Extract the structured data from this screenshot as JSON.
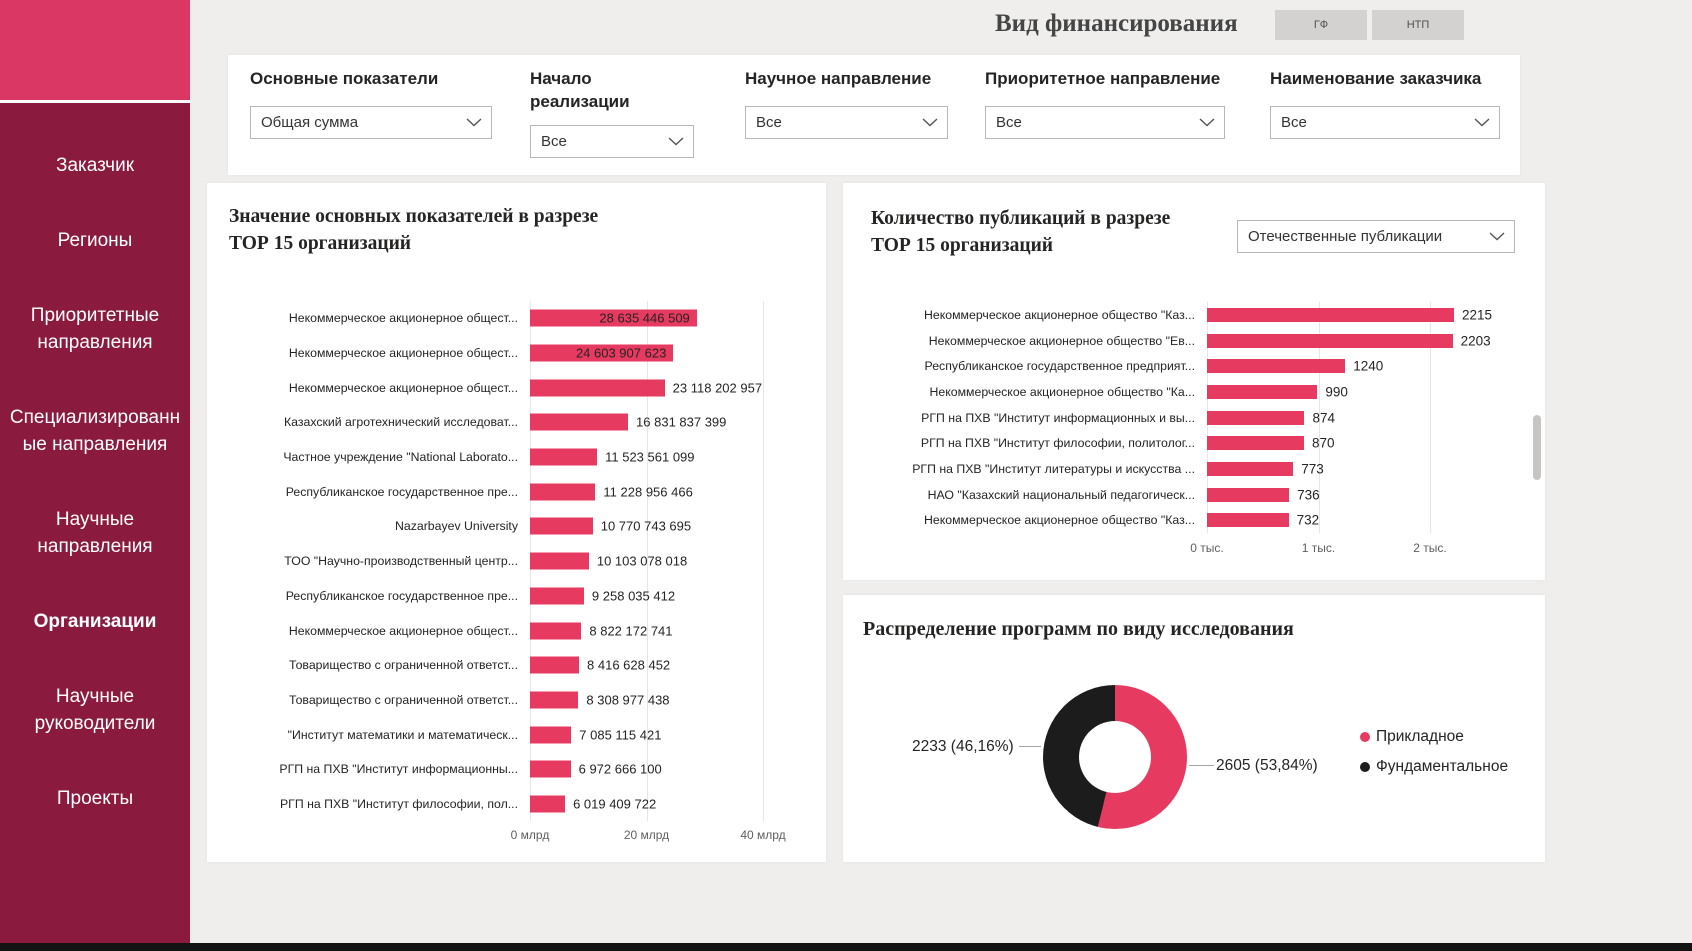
{
  "sidebar": {
    "items": [
      {
        "label": "Заказчик",
        "active": false
      },
      {
        "label": "Регионы",
        "active": false
      },
      {
        "label": "Приоритетные направления",
        "active": false
      },
      {
        "label": "Специализированные направления",
        "active": false
      },
      {
        "label": "Научные направления",
        "active": false
      },
      {
        "label": "Организации",
        "active": true
      },
      {
        "label": "Научные руководители",
        "active": false
      },
      {
        "label": "Проекты",
        "active": false
      }
    ]
  },
  "header": {
    "title": "Вид финансирования",
    "toggle_buttons": [
      {
        "label": "ГФ"
      },
      {
        "label": "НТП"
      }
    ]
  },
  "filters": [
    {
      "label": "Основные показатели",
      "value": "Общая сумма"
    },
    {
      "label": "Начало реализации",
      "value": "Все"
    },
    {
      "label": "Научное направление",
      "value": "Все"
    },
    {
      "label": "Приоритетное направление",
      "value": "Все"
    },
    {
      "label": "Наименование заказчика",
      "value": "Все"
    }
  ],
  "colors": {
    "accent": "#e73a60",
    "sidebar": "#8a1b3e",
    "sidebar_top": "#da3764",
    "dark_slice": "#1c1c1c"
  },
  "chart_data": [
    {
      "type": "bar",
      "orientation": "horizontal",
      "title": "Значение основных показателей в разрезе ТОР 15 организаций",
      "title_lines": [
        "Значение основных показателей в разрезе",
        "ТОР 15 организаций"
      ],
      "categories": [
        "Некоммерческое акционерное общест...",
        "Некоммерческое акционерное общест...",
        "Некоммерческое акционерное общест...",
        "Казахский агротехнический исследоват...",
        "Частное учреждение \"National Laborato...",
        "Республиканское государственное пре...",
        "Nazarbayev University",
        "ТОО \"Научно-производственный центр...",
        "Республиканское государственное пре...",
        "Некоммерческое акционерное общест...",
        "Товарищество с ограниченной ответст...",
        "Товарищество с ограниченной ответст...",
        "\"Институт математики и математическ...",
        "РГП на ПХВ \"Институт информационны...",
        "РГП на ПХВ \"Институт философии, пол..."
      ],
      "values": [
        28635446509,
        24603907623,
        23118202957,
        16831837399,
        11523561099,
        11228956466,
        10770743695,
        10103078018,
        9258035412,
        8822172741,
        8416628452,
        8308977438,
        7085115421,
        6972666100,
        6019409722
      ],
      "value_labels": [
        "28 635 446 509",
        "24 603 907 623",
        "23 118 202 957",
        "16 831 837 399",
        "11 523 561 099",
        "11 228 956 466",
        "10 770 743 695",
        "10 103 078 018",
        "9 258 035 412",
        "8 822 172 741",
        "8 416 628 452",
        "8 308 977 438",
        "7 085 115 421",
        "6 972 666 100",
        "6 019 409 722"
      ],
      "x_ticks": [
        "0 млрд",
        "20 млрд",
        "40 млрд"
      ],
      "x_tick_values": [
        0,
        20000000000,
        40000000000
      ],
      "xlim": [
        0,
        40000000000
      ],
      "bar_color": "#e73a60",
      "grid": true,
      "legend": "none"
    },
    {
      "type": "bar",
      "orientation": "horizontal",
      "title": "Количество публикаций в разрезе ТОР 15 организаций",
      "title_lines": [
        "Количество публикаций в разрезе",
        "ТОР 15 организаций"
      ],
      "dropdown": "Отечественные публикации",
      "categories": [
        "Некоммерческое акционерное общество \"Каз...",
        "Некоммерческое акционерное общество \"Ев...",
        "Республиканское государственное предприят...",
        "Некоммерческое акционерное общество \"Ка...",
        "РГП на ПХВ \"Институт информационных и вы...",
        "РГП на ПХВ \"Институт философии, политолог...",
        "РГП на ПХВ \"Институт литературы и искусства ...",
        "НАО \"Казахский национальный педагогическ...",
        "Некоммерческое акционерное общество \"Каз..."
      ],
      "values": [
        2215,
        2203,
        1240,
        990,
        874,
        870,
        773,
        736,
        732
      ],
      "value_labels": [
        "2215",
        "2203",
        "1240",
        "990",
        "874",
        "870",
        "773",
        "736",
        "732"
      ],
      "x_ticks": [
        "0 тыс.",
        "1 тыс.",
        "2 тыс."
      ],
      "x_tick_values": [
        0,
        1000,
        2000
      ],
      "xlim": [
        0,
        2000
      ],
      "bar_color": "#e73a60",
      "grid": true,
      "legend": "none"
    },
    {
      "type": "pie",
      "subtype": "donut",
      "title": "Распределение программ по виду исследования",
      "slices": [
        {
          "name": "Прикладное",
          "value": 2605,
          "pct": 53.84,
          "label": "2605 (53,84%)",
          "color": "#e73a60"
        },
        {
          "name": "Фундаментальное",
          "value": 2233,
          "pct": 46.16,
          "label": "2233 (46,16%)",
          "color": "#1c1c1c"
        }
      ],
      "legend_position": "right"
    }
  ]
}
